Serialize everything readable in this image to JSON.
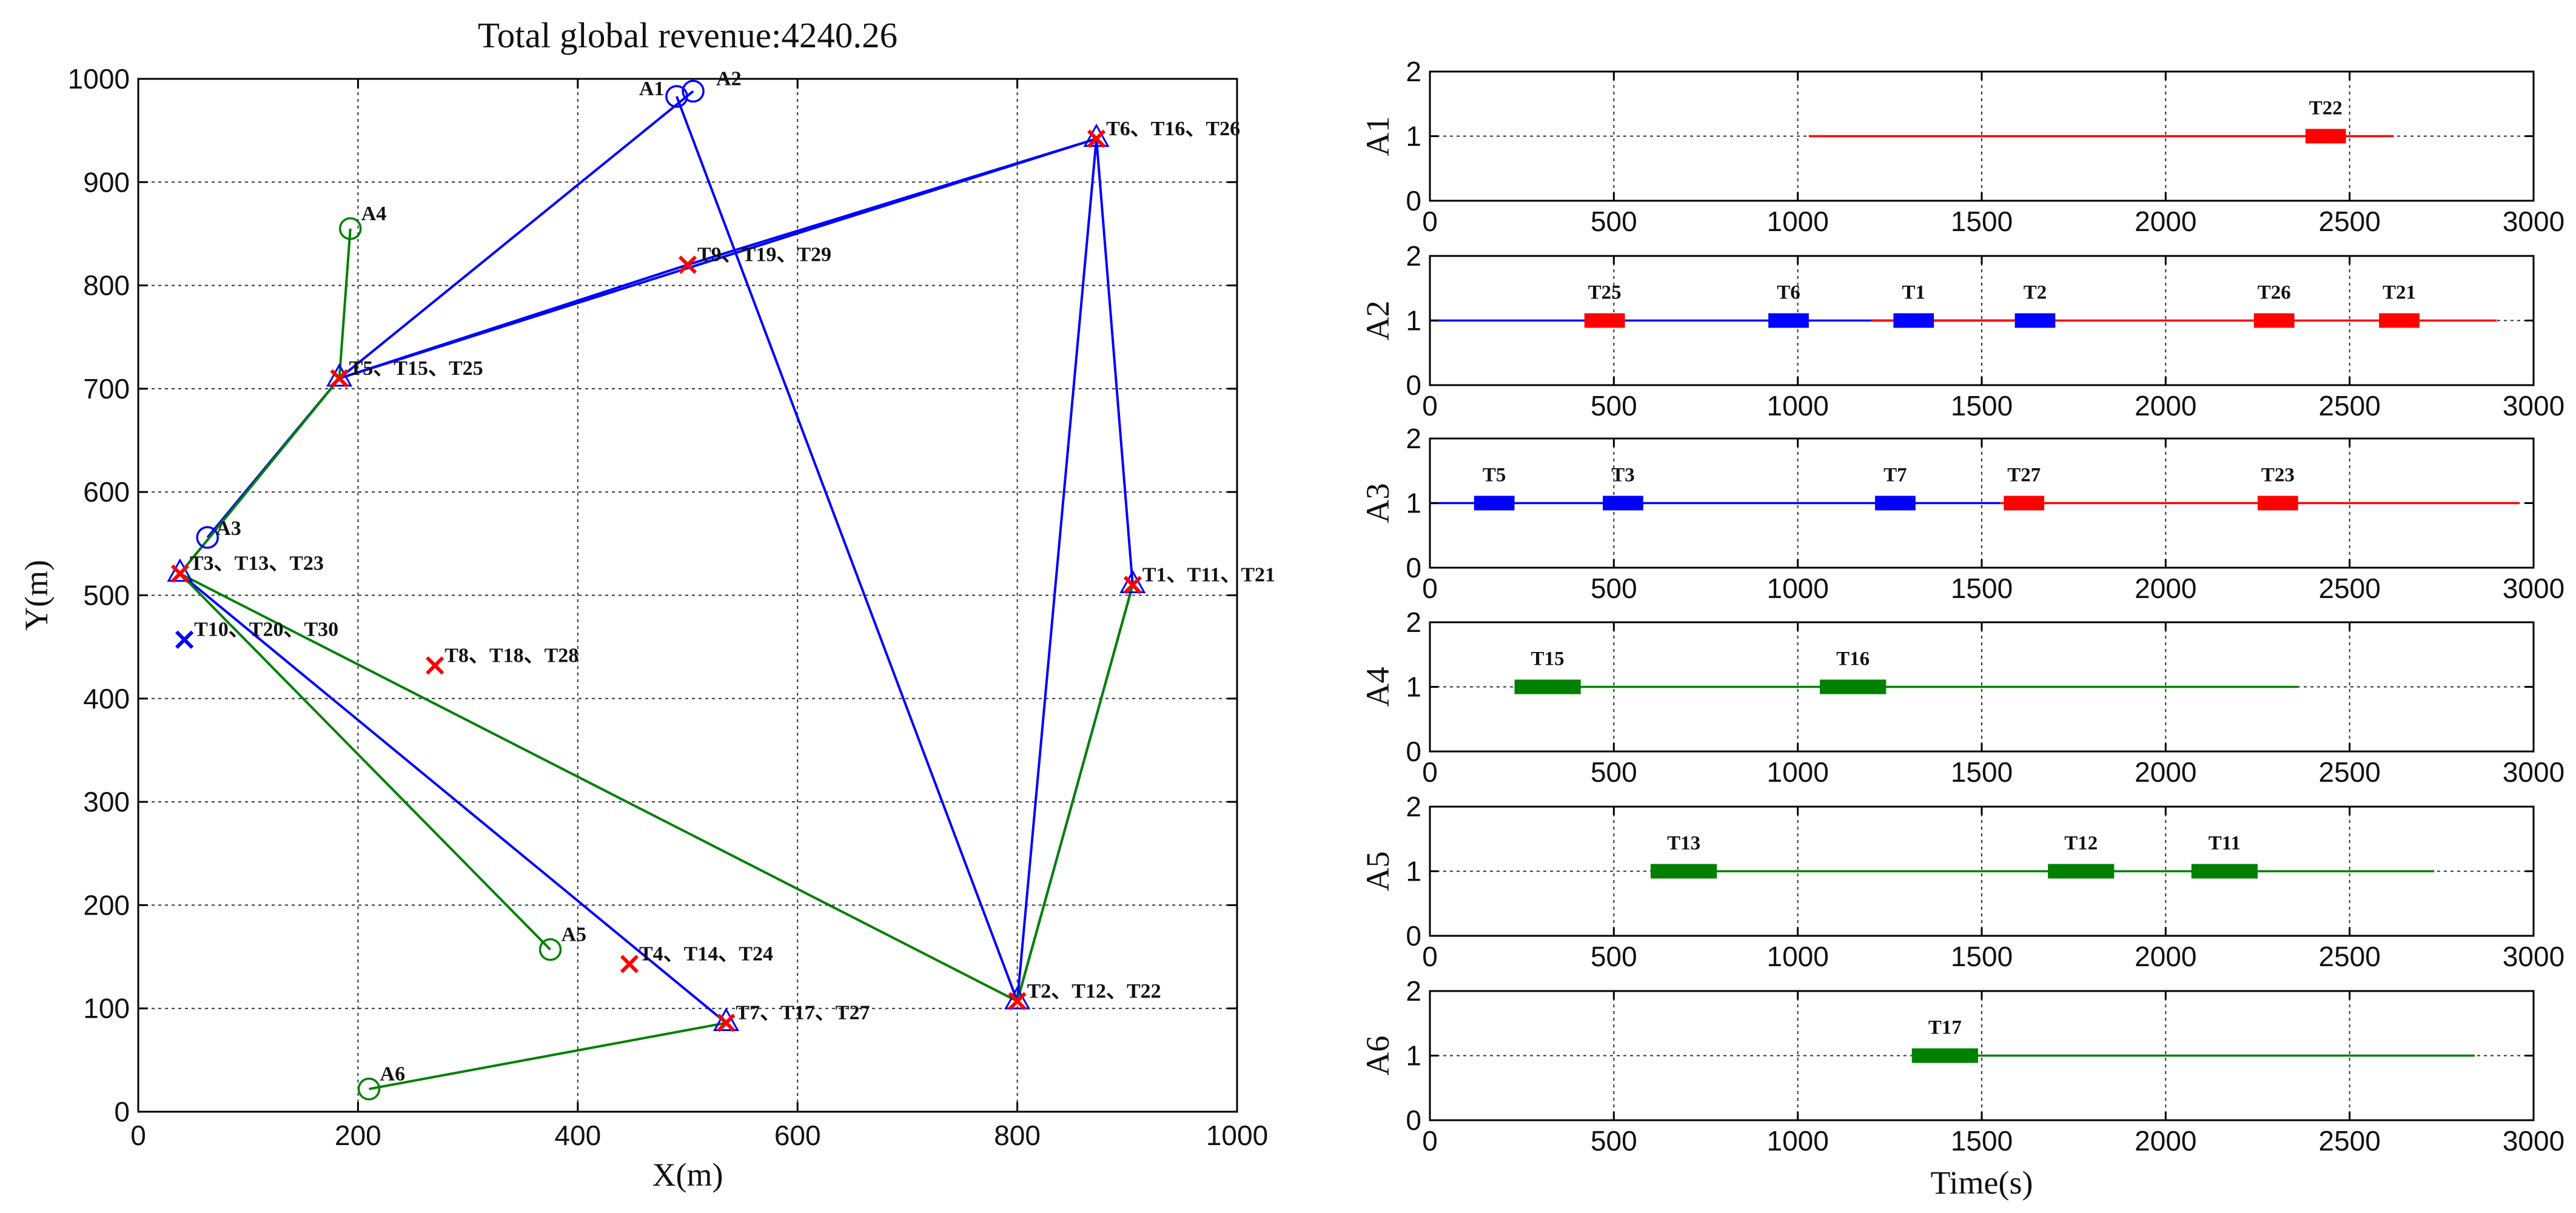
{
  "chart_data": [
    {
      "type": "scatter",
      "title": "Total global revenue:4240.26",
      "xlabel": "X(m)",
      "ylabel": "Y(m)",
      "xlim": [
        0,
        1000
      ],
      "ylim": [
        0,
        1000
      ],
      "xticks": [
        0,
        200,
        400,
        600,
        800,
        1000
      ],
      "yticks": [
        0,
        100,
        200,
        300,
        400,
        500,
        600,
        700,
        800,
        900,
        1000
      ],
      "grid": true,
      "agents": [
        {
          "name": "A1",
          "x": 490,
          "y": 983,
          "color": "#0000ff"
        },
        {
          "name": "A2",
          "x": 505,
          "y": 988,
          "color": "#0000ff"
        },
        {
          "name": "A3",
          "x": 63,
          "y": 556,
          "color": "#0000ff"
        },
        {
          "name": "A4",
          "x": 193,
          "y": 855,
          "color": "#008000"
        },
        {
          "name": "A5",
          "x": 375,
          "y": 157,
          "color": "#008000"
        },
        {
          "name": "A6",
          "x": 210,
          "y": 22,
          "color": "#008000"
        }
      ],
      "targets": [
        {
          "label": "T1、T11、T21",
          "x": 905,
          "y": 510,
          "color": "#ff0000",
          "triangle": true
        },
        {
          "label": "T2、T12、T22",
          "x": 800,
          "y": 107,
          "color": "#ff0000",
          "triangle": true
        },
        {
          "label": "T3、T13、T23",
          "x": 38,
          "y": 521,
          "color": "#ff0000",
          "triangle": true
        },
        {
          "label": "T4、T14、T24",
          "x": 447,
          "y": 143,
          "color": "#ff0000",
          "triangle": false
        },
        {
          "label": "T5、T15、T25",
          "x": 183,
          "y": 710,
          "color": "#ff0000",
          "triangle": true
        },
        {
          "label": "T6、T16、T26",
          "x": 872,
          "y": 942,
          "color": "#ff0000",
          "triangle": true
        },
        {
          "label": "T7、T17、T27",
          "x": 535,
          "y": 86,
          "color": "#ff0000",
          "triangle": true
        },
        {
          "label": "T8、T18、T28",
          "x": 270,
          "y": 432,
          "color": "#ff0000",
          "triangle": false
        },
        {
          "label": "T9、T19、T29",
          "x": 500,
          "y": 820,
          "color": "#ff0000",
          "triangle": false
        },
        {
          "label": "T10、T20、T30",
          "x": 42,
          "y": 457,
          "color": "#0000ff",
          "triangle": false
        }
      ],
      "routes": [
        {
          "agent": "A1",
          "color": "#0000ff",
          "path": [
            [
              490,
              983
            ],
            [
              800,
              107
            ]
          ]
        },
        {
          "agent": "A2",
          "color": "#0000ff",
          "path": [
            [
              505,
              988
            ],
            [
              183,
              710
            ],
            [
              872,
              942
            ],
            [
              905,
              510
            ],
            [
              800,
              107
            ]
          ]
        },
        {
          "agent": "A2b",
          "color": "#0000ff",
          "path": [
            [
              183,
              710
            ],
            [
              500,
              820
            ],
            [
              872,
              942
            ]
          ]
        },
        {
          "agent": "A3",
          "color": "#0000ff",
          "path": [
            [
              63,
              556
            ],
            [
              183,
              710
            ],
            [
              38,
              521
            ],
            [
              535,
              86
            ]
          ]
        },
        {
          "agent": "A3b",
          "color": "#0000ff",
          "path": [
            [
              872,
              942
            ],
            [
              800,
              107
            ]
          ]
        },
        {
          "agent": "A4",
          "color": "#008000",
          "path": [
            [
              193,
              855
            ],
            [
              183,
              710
            ],
            [
              38,
              521
            ],
            [
              800,
              107
            ]
          ]
        },
        {
          "agent": "A5",
          "color": "#008000",
          "path": [
            [
              375,
              157
            ],
            [
              38,
              521
            ]
          ]
        },
        {
          "agent": "A5b",
          "color": "#008000",
          "path": [
            [
              800,
              107
            ],
            [
              905,
              510
            ]
          ]
        },
        {
          "agent": "A6",
          "color": "#008000",
          "path": [
            [
              210,
              22
            ],
            [
              535,
              86
            ]
          ]
        }
      ]
    },
    {
      "type": "gantt",
      "xlabel": "Time(s)",
      "xlim": [
        0,
        3000
      ],
      "xticks": [
        0,
        500,
        1000,
        1500,
        2000,
        2500,
        3000
      ],
      "ylim": [
        0,
        2
      ],
      "yticks": [
        0,
        1,
        2
      ],
      "rows": [
        {
          "name": "A1",
          "line_segments": [
            {
              "start": 1030,
              "end": 2620,
              "color": "#ff0000"
            }
          ],
          "tasks": [
            {
              "label": "T22",
              "start": 2380,
              "end": 2490,
              "color": "#ff0000"
            }
          ]
        },
        {
          "name": "A2",
          "line_segments": [
            {
              "start": 0,
              "end": 1200,
              "color": "#0000ff"
            },
            {
              "start": 1200,
              "end": 1700,
              "color": "#0000ff"
            },
            {
              "start": 1200,
              "end": 2900,
              "color": "#ff0000"
            }
          ],
          "tasks": [
            {
              "label": "T25",
              "start": 420,
              "end": 530,
              "color": "#ff0000"
            },
            {
              "label": "T6",
              "start": 920,
              "end": 1030,
              "color": "#0000ff"
            },
            {
              "label": "T1",
              "start": 1260,
              "end": 1370,
              "color": "#0000ff"
            },
            {
              "label": "T2",
              "start": 1590,
              "end": 1700,
              "color": "#0000ff"
            },
            {
              "label": "T26",
              "start": 2240,
              "end": 2350,
              "color": "#ff0000"
            },
            {
              "label": "T21",
              "start": 2580,
              "end": 2690,
              "color": "#ff0000"
            }
          ]
        },
        {
          "name": "A3",
          "line_segments": [
            {
              "start": 0,
              "end": 1550,
              "color": "#0000ff"
            },
            {
              "start": 1550,
              "end": 2960,
              "color": "#ff0000"
            }
          ],
          "tasks": [
            {
              "label": "T5",
              "start": 120,
              "end": 230,
              "color": "#0000ff"
            },
            {
              "label": "T3",
              "start": 470,
              "end": 580,
              "color": "#0000ff"
            },
            {
              "label": "T7",
              "start": 1210,
              "end": 1320,
              "color": "#0000ff"
            },
            {
              "label": "T27",
              "start": 1560,
              "end": 1670,
              "color": "#ff0000"
            },
            {
              "label": "T23",
              "start": 2250,
              "end": 2360,
              "color": "#ff0000"
            }
          ]
        },
        {
          "name": "A4",
          "line_segments": [
            {
              "start": 230,
              "end": 2360,
              "color": "#008000"
            }
          ],
          "tasks": [
            {
              "label": "T15",
              "start": 230,
              "end": 410,
              "color": "#008000"
            },
            {
              "label": "T16",
              "start": 1060,
              "end": 1240,
              "color": "#008000"
            }
          ]
        },
        {
          "name": "A5",
          "line_segments": [
            {
              "start": 600,
              "end": 2730,
              "color": "#008000"
            }
          ],
          "tasks": [
            {
              "label": "T13",
              "start": 600,
              "end": 780,
              "color": "#008000"
            },
            {
              "label": "T12",
              "start": 1680,
              "end": 1860,
              "color": "#008000"
            },
            {
              "label": "T11",
              "start": 2070,
              "end": 2250,
              "color": "#008000"
            }
          ]
        },
        {
          "name": "A6",
          "line_segments": [
            {
              "start": 1310,
              "end": 2840,
              "color": "#008000"
            }
          ],
          "tasks": [
            {
              "label": "T17",
              "start": 1310,
              "end": 1490,
              "color": "#008000"
            }
          ]
        }
      ]
    }
  ]
}
